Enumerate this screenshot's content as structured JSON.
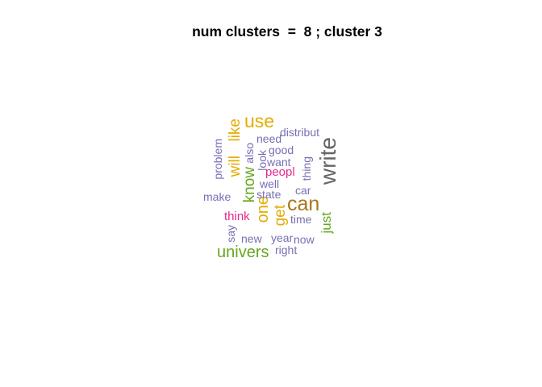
{
  "title": "num clusters  =  8 ; cluster 3",
  "colors": {
    "gold": "#e6ab02",
    "purple": "#7570b3",
    "green": "#66a61e",
    "magenta": "#e7298a",
    "brown": "#a6761d",
    "gray": "#666666"
  },
  "words": [
    {
      "id": "use",
      "text": "use",
      "color": "gold"
    },
    {
      "id": "like",
      "text": "like",
      "color": "gold"
    },
    {
      "id": "will",
      "text": "will",
      "color": "gold"
    },
    {
      "id": "one",
      "text": "one",
      "color": "gold"
    },
    {
      "id": "get",
      "text": "get",
      "color": "gold"
    },
    {
      "id": "can",
      "text": "can",
      "color": "brown"
    },
    {
      "id": "write",
      "text": "write",
      "color": "gray"
    },
    {
      "id": "know",
      "text": "know",
      "color": "green"
    },
    {
      "id": "just",
      "text": "just",
      "color": "green"
    },
    {
      "id": "univers",
      "text": "univers",
      "color": "green"
    },
    {
      "id": "peopl",
      "text": "peopl",
      "color": "magenta"
    },
    {
      "id": "think",
      "text": "think",
      "color": "magenta"
    },
    {
      "id": "distribut",
      "text": "distribut",
      "color": "purple"
    },
    {
      "id": "need",
      "text": "need",
      "color": "purple"
    },
    {
      "id": "also",
      "text": "also",
      "color": "purple"
    },
    {
      "id": "good",
      "text": "good",
      "color": "purple"
    },
    {
      "id": "look",
      "text": "look",
      "color": "purple"
    },
    {
      "id": "want",
      "text": "want",
      "color": "purple"
    },
    {
      "id": "problem",
      "text": "problem",
      "color": "purple"
    },
    {
      "id": "thing",
      "text": "thing",
      "color": "purple"
    },
    {
      "id": "well",
      "text": "well",
      "color": "purple"
    },
    {
      "id": "car",
      "text": "car",
      "color": "purple"
    },
    {
      "id": "make",
      "text": "make",
      "color": "purple"
    },
    {
      "id": "state",
      "text": "state",
      "color": "purple"
    },
    {
      "id": "time",
      "text": "time",
      "color": "purple"
    },
    {
      "id": "say",
      "text": "say",
      "color": "purple"
    },
    {
      "id": "new",
      "text": "new",
      "color": "purple"
    },
    {
      "id": "year",
      "text": "year",
      "color": "purple"
    },
    {
      "id": "now",
      "text": "now",
      "color": "purple"
    },
    {
      "id": "right",
      "text": "right",
      "color": "purple"
    }
  ]
}
